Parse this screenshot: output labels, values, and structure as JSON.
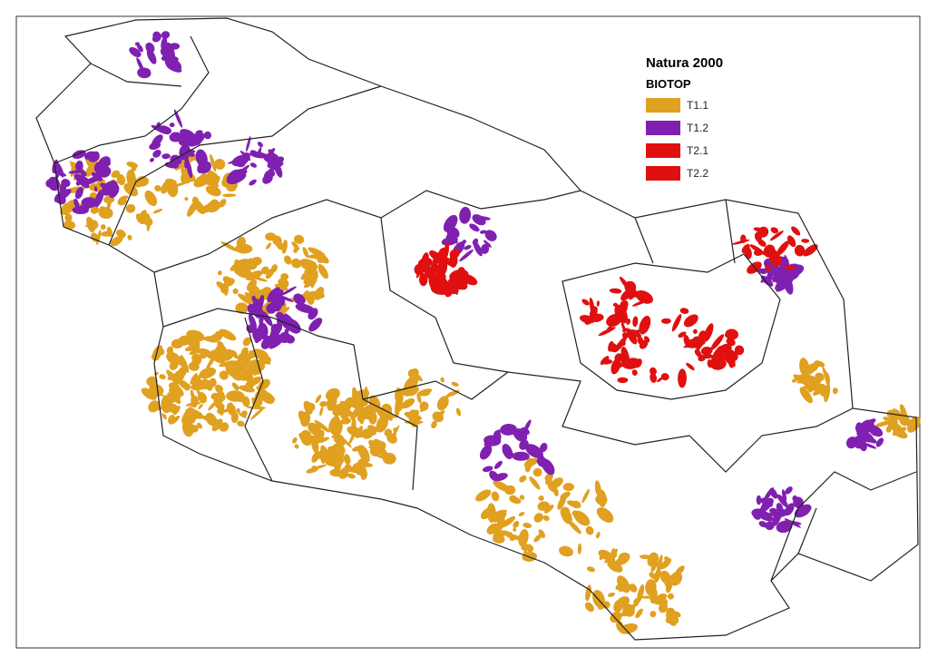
{
  "legend": {
    "title": "Natura 2000",
    "subtitle": "BIOTOP",
    "items": [
      {
        "label": "T1.1",
        "color": "#e0a020"
      },
      {
        "label": "T1.2",
        "color": "#8020b0"
      },
      {
        "label": "T2.1",
        "color": "#e01010"
      },
      {
        "label": "T2.2",
        "color": "#e01010"
      }
    ]
  }
}
